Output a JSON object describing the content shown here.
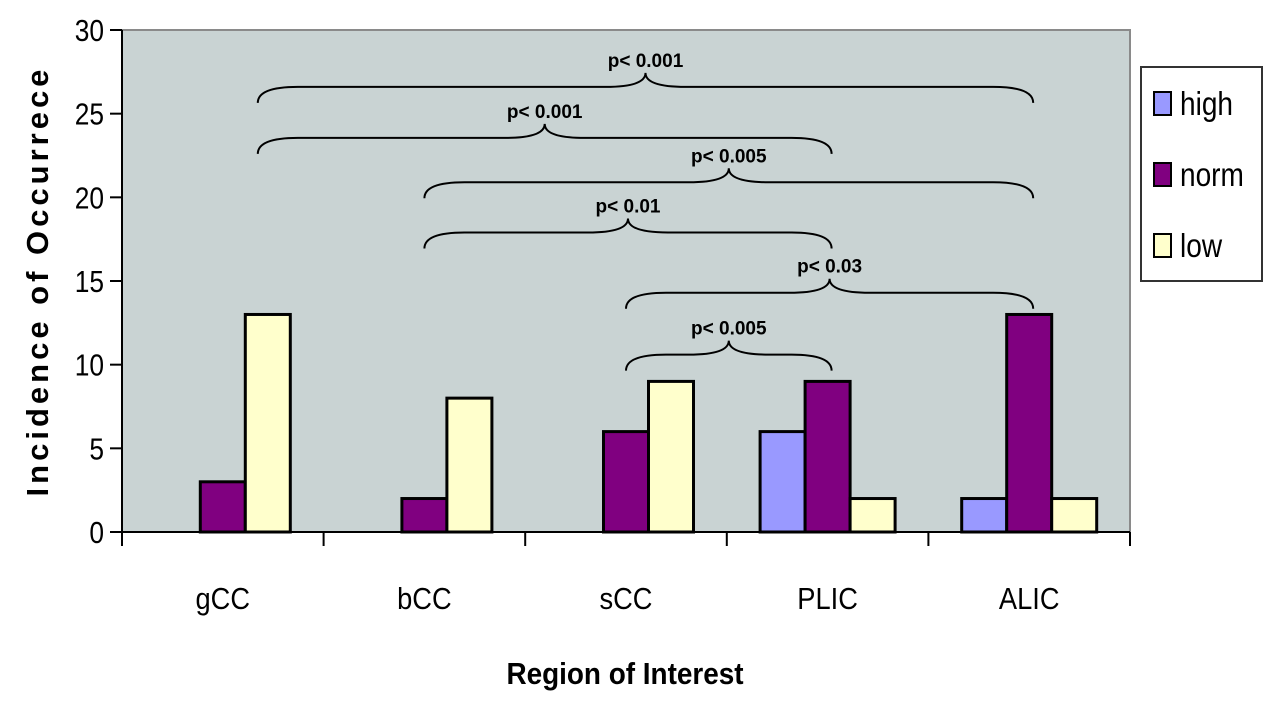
{
  "chart_data": {
    "type": "bar",
    "title": "",
    "xlabel": "Region of Interest",
    "ylabel": "Incidence of Occurrece",
    "ylim": [
      0,
      30
    ],
    "yticks": [
      0,
      5,
      10,
      15,
      20,
      25,
      30
    ],
    "categories": [
      "gCC",
      "bCC",
      "sCC",
      "PLIC",
      "ALIC"
    ],
    "series": [
      {
        "name": "high",
        "color": "#9999ff",
        "values": [
          0,
          0,
          0,
          6,
          2
        ]
      },
      {
        "name": "norm",
        "color": "#800080",
        "values": [
          3,
          2,
          6,
          9,
          13
        ]
      },
      {
        "name": "low",
        "color": "#ffffcc",
        "values": [
          13,
          8,
          9,
          2,
          2
        ]
      }
    ],
    "plot_background": "#c9d3d3",
    "grid": false,
    "legend": "right",
    "annotations": [
      {
        "label": "p< 0.001",
        "from": "gCC",
        "to": "ALIC",
        "y": 26.6
      },
      {
        "label": "p< 0.001",
        "from": "gCC",
        "to": "PLIC",
        "y": 23.55
      },
      {
        "label": "p< 0.005",
        "from": "bCC",
        "to": "ALIC",
        "y": 20.9
      },
      {
        "label": "p< 0.01",
        "from": "bCC",
        "to": "PLIC",
        "y": 17.9
      },
      {
        "label": "p< 0.03",
        "from": "sCC",
        "to": "ALIC",
        "y": 14.3
      },
      {
        "label": "p< 0.005",
        "from": "sCC",
        "to": "PLIC",
        "y": 10.6
      }
    ]
  }
}
